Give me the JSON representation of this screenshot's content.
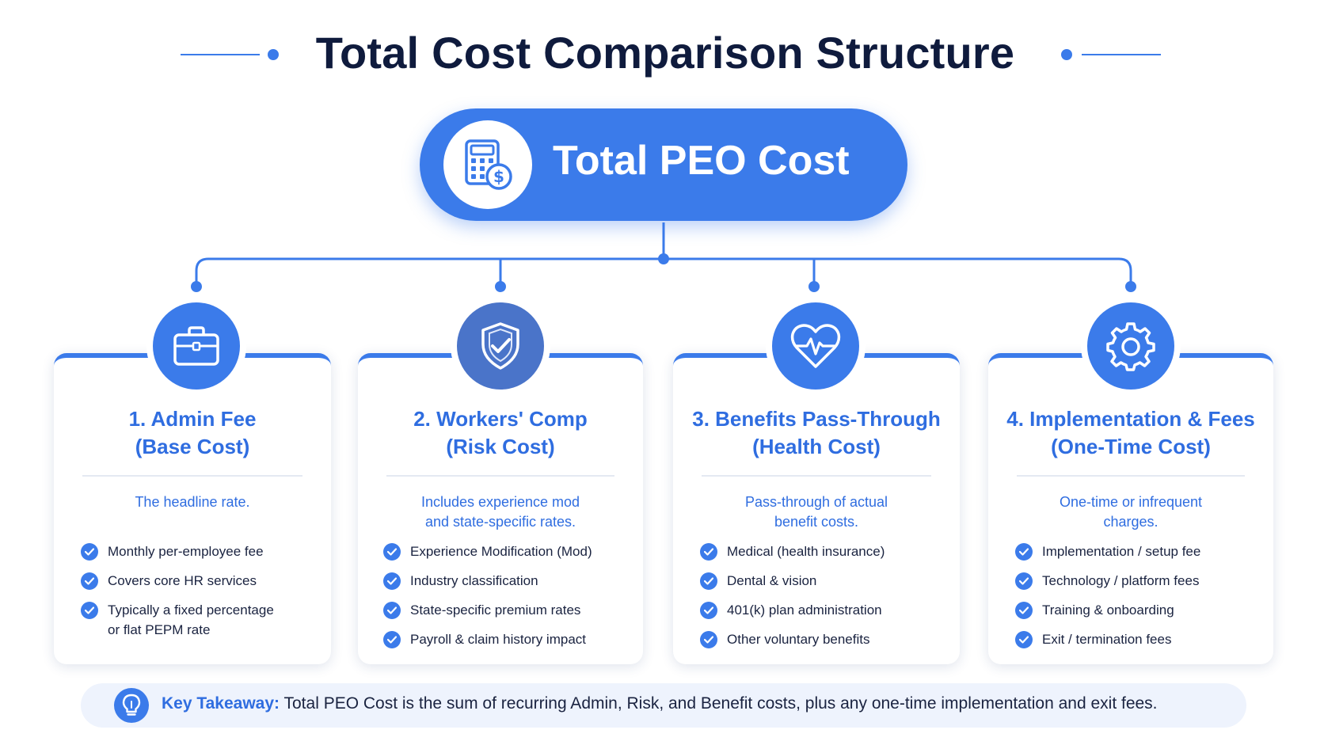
{
  "title": "Total Cost Comparison Structure",
  "root": {
    "label": "Total PEO Cost",
    "icon": "calculator-dollar-icon"
  },
  "cards": [
    {
      "icon": "briefcase-icon",
      "title_line1": "1. Admin Fee",
      "title_line2": "(Base Cost)",
      "desc_line1": "The headline rate.",
      "desc_line2": "",
      "bullets": [
        "Monthly per-employee fee",
        "Covers core HR services",
        "Typically a fixed percentage",
        "or flat PEPM rate"
      ]
    },
    {
      "icon": "shield-check-icon",
      "title_line1": "2. Workers' Comp",
      "title_line2": "(Risk Cost)",
      "desc_line1": "Includes experience mod",
      "desc_line2": "and state-specific rates.",
      "bullets": [
        "Experience Modification (Mod)",
        "Industry classification",
        "State-specific premium rates",
        "Payroll & claim history impact"
      ]
    },
    {
      "icon": "heart-pulse-icon",
      "title_line1": "3. Benefits Pass-Through",
      "title_line2": "(Health Cost)",
      "desc_line1": "Pass-through of actual",
      "desc_line2": "benefit costs.",
      "bullets": [
        "Medical (health insurance)",
        "Dental & vision",
        "401(k) plan administration",
        "Other voluntary benefits"
      ]
    },
    {
      "icon": "gear-icon",
      "title_line1": "4. Implementation & Fees",
      "title_line2": "(One-Time Cost)",
      "desc_line1": "One-time or infrequent",
      "desc_line2": "charges.",
      "bullets": [
        "Implementation / setup fee",
        "Technology / platform fees",
        "Training & onboarding",
        "Exit / termination fees"
      ]
    }
  ],
  "takeaway": {
    "icon": "lightbulb-icon",
    "label": "Key Takeaway:",
    "text": "Total PEO Cost is the sum of recurring Admin, Risk, and Benefit costs, plus any one-time implementation and exit fees."
  },
  "colors": {
    "accent": "#3b7bea",
    "accent_text": "#2f6de0",
    "title": "#0f1b3d",
    "takeaway_bg": "#eef3fd"
  }
}
